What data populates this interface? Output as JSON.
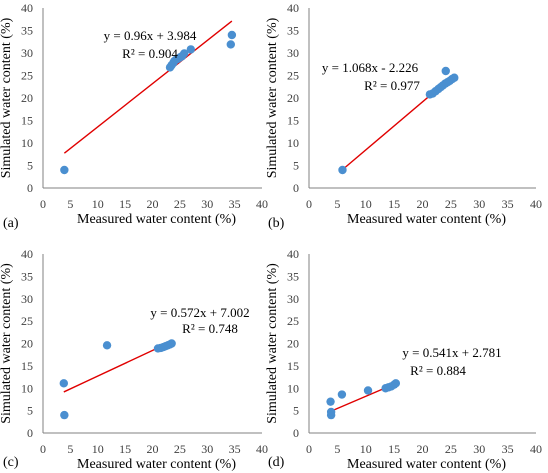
{
  "chart_data": [
    {
      "type": "scatter",
      "panel_label": "(a)",
      "xlabel": "Measured water content (%)",
      "ylabel": "Simulated water content (%)",
      "xlim": [
        0,
        40
      ],
      "ylim": [
        0,
        40
      ],
      "xticks": [
        0,
        5,
        10,
        15,
        20,
        25,
        30,
        35,
        40
      ],
      "yticks": [
        0,
        5,
        10,
        15,
        20,
        25,
        30,
        35,
        40
      ],
      "grid": false,
      "marker_color": "#4a8fd0",
      "trend_color": "#e00000",
      "trendline": {
        "slope": 0.96,
        "intercept": 3.984,
        "x_range": [
          3.9,
          34.5
        ]
      },
      "equation": "y = 0.96x + 3.984",
      "r2": "R² = 0.904",
      "points": [
        [
          3.9,
          4.0
        ],
        [
          23.2,
          26.8
        ],
        [
          23.5,
          27.3
        ],
        [
          23.8,
          27.8
        ],
        [
          24.0,
          28.2
        ],
        [
          24.3,
          28.5
        ],
        [
          24.6,
          28.7
        ],
        [
          25.0,
          29.0
        ],
        [
          25.4,
          29.3
        ],
        [
          25.8,
          29.9
        ],
        [
          27.0,
          30.8
        ],
        [
          34.3,
          31.9
        ],
        [
          34.5,
          34.0
        ]
      ]
    },
    {
      "type": "scatter",
      "panel_label": "(b)",
      "xlabel": "Measured water content (%)",
      "ylabel": "Simulated water content (%)",
      "xlim": [
        0,
        40
      ],
      "ylim": [
        0,
        40
      ],
      "xticks": [
        0,
        5,
        10,
        15,
        20,
        25,
        30,
        35,
        40
      ],
      "yticks": [
        0,
        5,
        10,
        15,
        20,
        25,
        30,
        35,
        40
      ],
      "grid": false,
      "marker_color": "#4a8fd0",
      "trend_color": "#e00000",
      "trendline": {
        "slope": 1.068,
        "intercept": -2.226,
        "x_range": [
          5.8,
          25.5
        ]
      },
      "equation": "y = 1.068x - 2.226",
      "r2": "R² = 0.977",
      "points": [
        [
          5.9,
          4.0
        ],
        [
          21.3,
          20.8
        ],
        [
          21.8,
          21.0
        ],
        [
          22.3,
          21.5
        ],
        [
          22.8,
          22.0
        ],
        [
          23.2,
          22.4
        ],
        [
          23.6,
          22.8
        ],
        [
          24.0,
          23.2
        ],
        [
          24.4,
          23.5
        ],
        [
          24.8,
          23.8
        ],
        [
          25.2,
          24.2
        ],
        [
          25.6,
          24.5
        ],
        [
          24.1,
          26.0
        ]
      ]
    },
    {
      "type": "scatter",
      "panel_label": "(c)",
      "xlabel": "Measured water content (%)",
      "ylabel": "Simulated water content (%)",
      "xlim": [
        0,
        40
      ],
      "ylim": [
        0,
        40
      ],
      "xticks": [
        0,
        5,
        10,
        15,
        20,
        25,
        30,
        35,
        40
      ],
      "yticks": [
        0,
        5,
        10,
        15,
        20,
        25,
        30,
        35,
        40
      ],
      "grid": false,
      "marker_color": "#4a8fd0",
      "trend_color": "#e00000",
      "trendline": {
        "slope": 0.572,
        "intercept": 7.002,
        "x_range": [
          3.8,
          23.5
        ]
      },
      "equation": "y = 0.572x + 7.002",
      "r2": "R² = 0.748",
      "points": [
        [
          3.8,
          11.1
        ],
        [
          3.9,
          4.0
        ],
        [
          11.7,
          19.6
        ],
        [
          21.0,
          18.9
        ],
        [
          21.5,
          19.0
        ],
        [
          22.0,
          19.2
        ],
        [
          22.4,
          19.4
        ],
        [
          22.8,
          19.6
        ],
        [
          23.2,
          19.8
        ],
        [
          23.5,
          20.0
        ]
      ]
    },
    {
      "type": "scatter",
      "panel_label": "(d)",
      "xlabel": "Measured water content (%)",
      "ylabel": "Simulated water content (%)",
      "xlim": [
        0,
        40
      ],
      "ylim": [
        0,
        40
      ],
      "xticks": [
        0,
        5,
        10,
        15,
        20,
        25,
        30,
        35,
        40
      ],
      "yticks": [
        0,
        5,
        10,
        15,
        20,
        25,
        30,
        35,
        40
      ],
      "grid": false,
      "marker_color": "#4a8fd0",
      "trend_color": "#e00000",
      "trendline": {
        "slope": 0.541,
        "intercept": 2.781,
        "x_range": [
          3.8,
          15.5
        ]
      },
      "equation": "y = 0.541x + 2.781",
      "r2": "R² = 0.884",
      "points": [
        [
          3.8,
          7.0
        ],
        [
          3.9,
          4.0
        ],
        [
          3.9,
          4.7
        ],
        [
          5.8,
          8.6
        ],
        [
          10.4,
          9.5
        ],
        [
          13.5,
          10.0
        ],
        [
          14.0,
          10.2
        ],
        [
          14.5,
          10.4
        ],
        [
          15.0,
          10.8
        ],
        [
          15.3,
          11.1
        ]
      ]
    }
  ]
}
